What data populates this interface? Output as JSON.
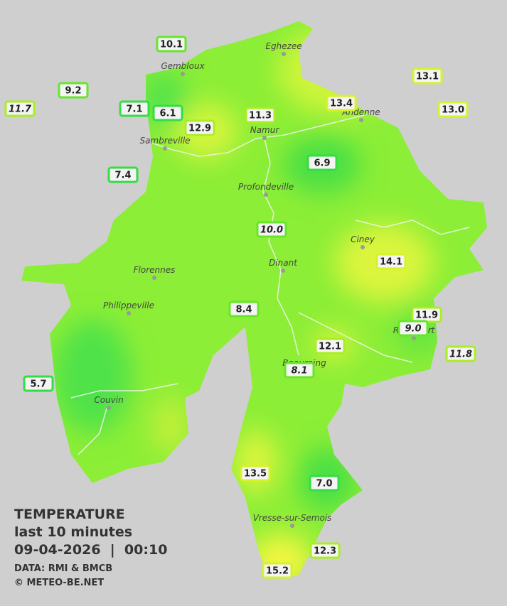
{
  "title": {
    "heading": "TEMPERATURE",
    "period": "last 10 minutes",
    "timestamp": "09-04-2026  |  00:10"
  },
  "credits": {
    "data": "DATA: RMI & BMCB",
    "copyright": "© METEO-BE.NET"
  },
  "cities": [
    "Eghezee",
    "Gembloux",
    "Andenne",
    "Namur",
    "Sambreville",
    "Profondeville",
    "Ciney",
    "Dinant",
    "Florennes",
    "Philippeville",
    "Rochefort",
    "Beauraing",
    "Couvin",
    "Vresse-sur-Semois"
  ],
  "stations": [
    "10.1",
    "9.2",
    "11.7",
    "7.1",
    "6.1",
    "12.9",
    "11.3",
    "13.4",
    "13.1",
    "13.0",
    "7.4",
    "6.9",
    "10.0",
    "14.1",
    "8.4",
    "11.9",
    "9.0",
    "12.1",
    "11.8",
    "8.1",
    "5.7",
    "13.5",
    "7.0",
    "12.3",
    "15.2"
  ]
}
